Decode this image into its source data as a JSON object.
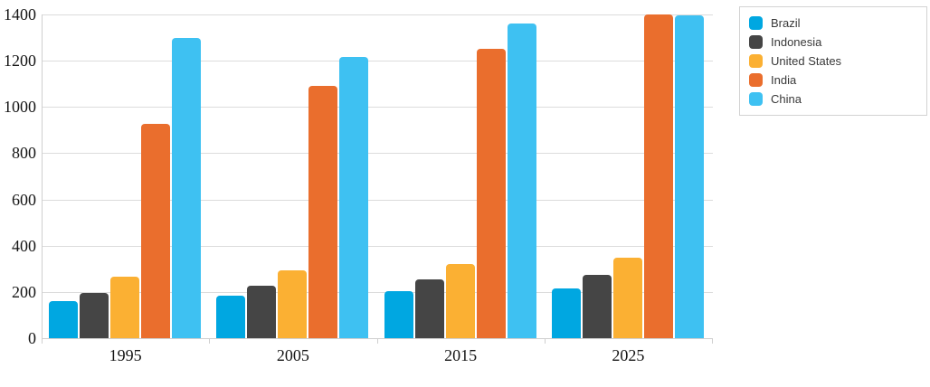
{
  "chart_data": {
    "type": "bar",
    "title": "",
    "xlabel": "",
    "ylabel": "",
    "categories": [
      "1995",
      "2005",
      "2015",
      "2025"
    ],
    "series": [
      {
        "name": "Brazil",
        "color": "#00A7E1",
        "values": [
          160,
          185,
          204,
          217
        ]
      },
      {
        "name": "Indonesia",
        "color": "#454545",
        "values": [
          196,
          228,
          255,
          275
        ]
      },
      {
        "name": "United States",
        "color": "#FBB033",
        "values": [
          266,
          295,
          320,
          350
        ]
      },
      {
        "name": "India",
        "color": "#EA6E2D",
        "values": [
          925,
          1090,
          1250,
          1400
        ]
      },
      {
        "name": "China",
        "color": "#3EC1F2",
        "values": [
          1300,
          1215,
          1360,
          1395
        ]
      }
    ],
    "ylim": [
      0,
      1400
    ],
    "ytick_step": 200,
    "yticks": [
      "0",
      "200",
      "400",
      "600",
      "800",
      "1000",
      "1200",
      "1400"
    ],
    "grid": true,
    "legend_position": "outside-top-right",
    "colors": {
      "gridline": "#dcdcdc",
      "axis_line": "#cfcfcf",
      "axis_text": "#141414",
      "legend_border": "#d3d3d3",
      "background": "#ffffff"
    }
  }
}
